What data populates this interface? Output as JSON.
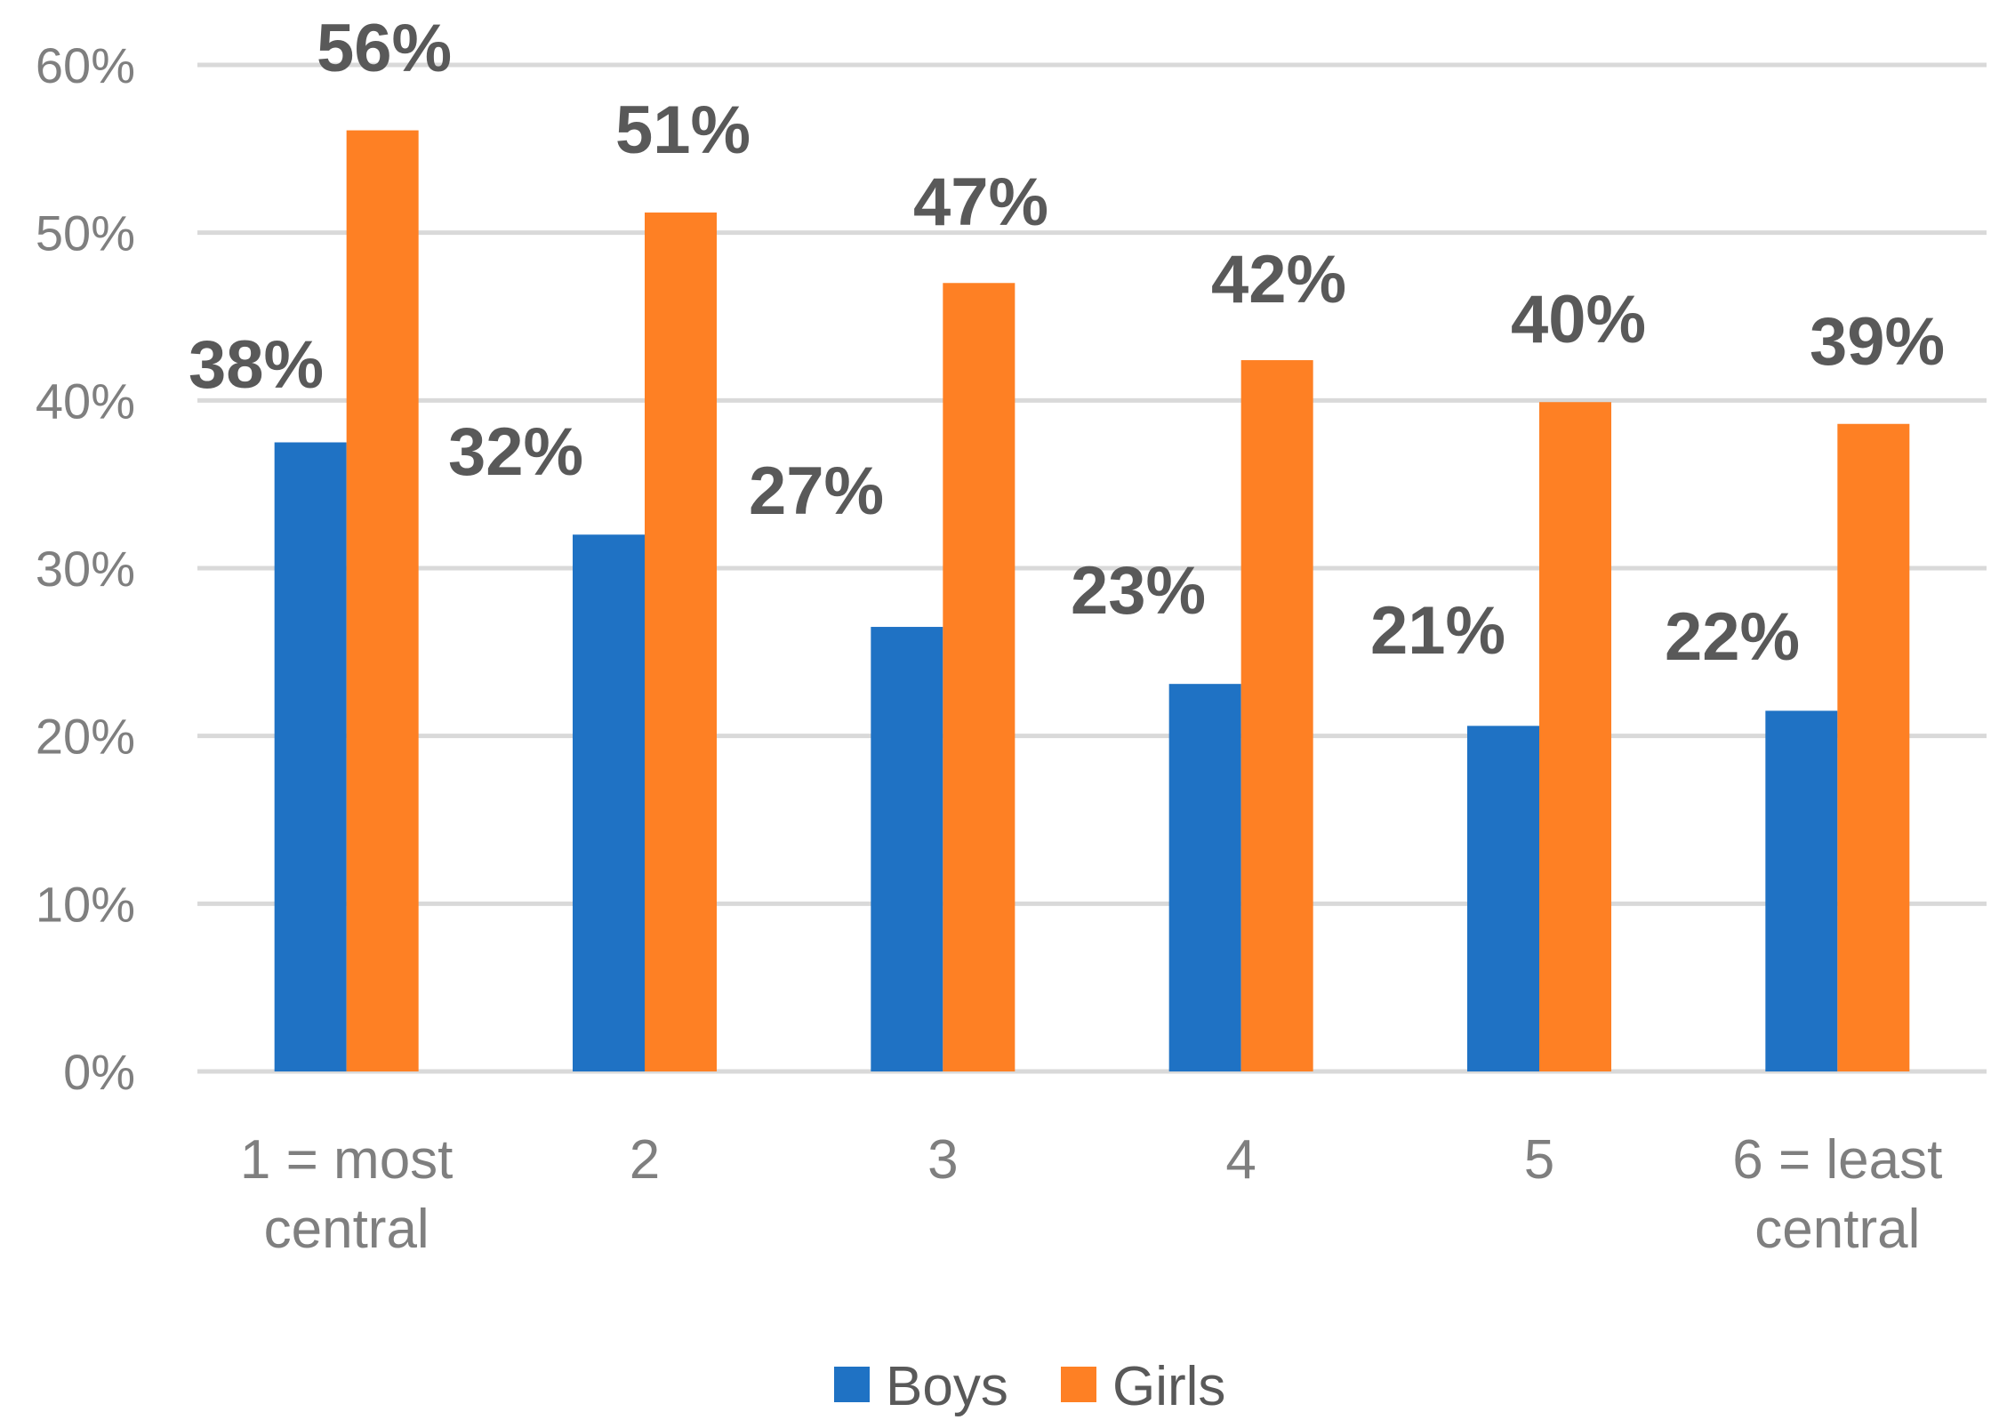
{
  "chart_data": {
    "type": "bar",
    "title": "",
    "xlabel": "",
    "ylabel": "",
    "categories": [
      [
        "1 = most",
        "central"
      ],
      [
        "2"
      ],
      [
        "3"
      ],
      [
        "4"
      ],
      [
        "5"
      ],
      [
        "6 = least",
        "central"
      ]
    ],
    "series": [
      {
        "name": "Boys",
        "color": "#1f72c4",
        "values": [
          37.5,
          32.0,
          26.5,
          23.1,
          20.6,
          21.5
        ],
        "labels": [
          "38%",
          "32%",
          "27%",
          "23%",
          "21%",
          "22%"
        ]
      },
      {
        "name": "Girls",
        "color": "#fe8024",
        "values": [
          56.1,
          51.2,
          47.0,
          42.4,
          39.9,
          38.6
        ],
        "labels": [
          "56%",
          "51%",
          "47%",
          "42%",
          "40%",
          "39%"
        ]
      }
    ],
    "ylim": [
      0,
      60
    ],
    "yticks": [
      0,
      10,
      20,
      30,
      40,
      50,
      60
    ],
    "ytick_labels": [
      "0%",
      "10%",
      "20%",
      "30%",
      "40%",
      "50%",
      "60%"
    ],
    "grid": true,
    "legend_position": "bottom-center",
    "gridline_color": "#d9d9d9"
  }
}
